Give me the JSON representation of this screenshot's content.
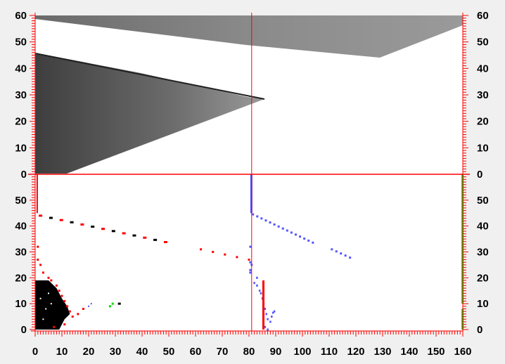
{
  "viewer": {
    "x_axis": {
      "min": 0,
      "max": 160,
      "tick_labels": [
        "0",
        "10",
        "20",
        "30",
        "40",
        "50",
        "60",
        "70",
        "80",
        "90",
        "100",
        "110",
        "120",
        "130",
        "140",
        "150",
        "160"
      ]
    },
    "top_panel": {
      "y_axis": {
        "min": 0,
        "max": 60,
        "tick_labels": [
          "0",
          "10",
          "20",
          "30",
          "40",
          "50",
          "60"
        ]
      }
    },
    "bottom_panel": {
      "y_axis": {
        "min": 0,
        "max": 60,
        "tick_labels": [
          "0",
          "10",
          "20",
          "30",
          "40",
          "50"
        ]
      }
    },
    "cursor_x": 81,
    "colors": {
      "background": "#f0f0f0",
      "axis": "#ff0000",
      "cursor": "#ff0000",
      "points_left": "#ff0000",
      "points_center": "#5555ff",
      "points_green": "#00dd00",
      "dark_blob": "#000000"
    }
  }
}
